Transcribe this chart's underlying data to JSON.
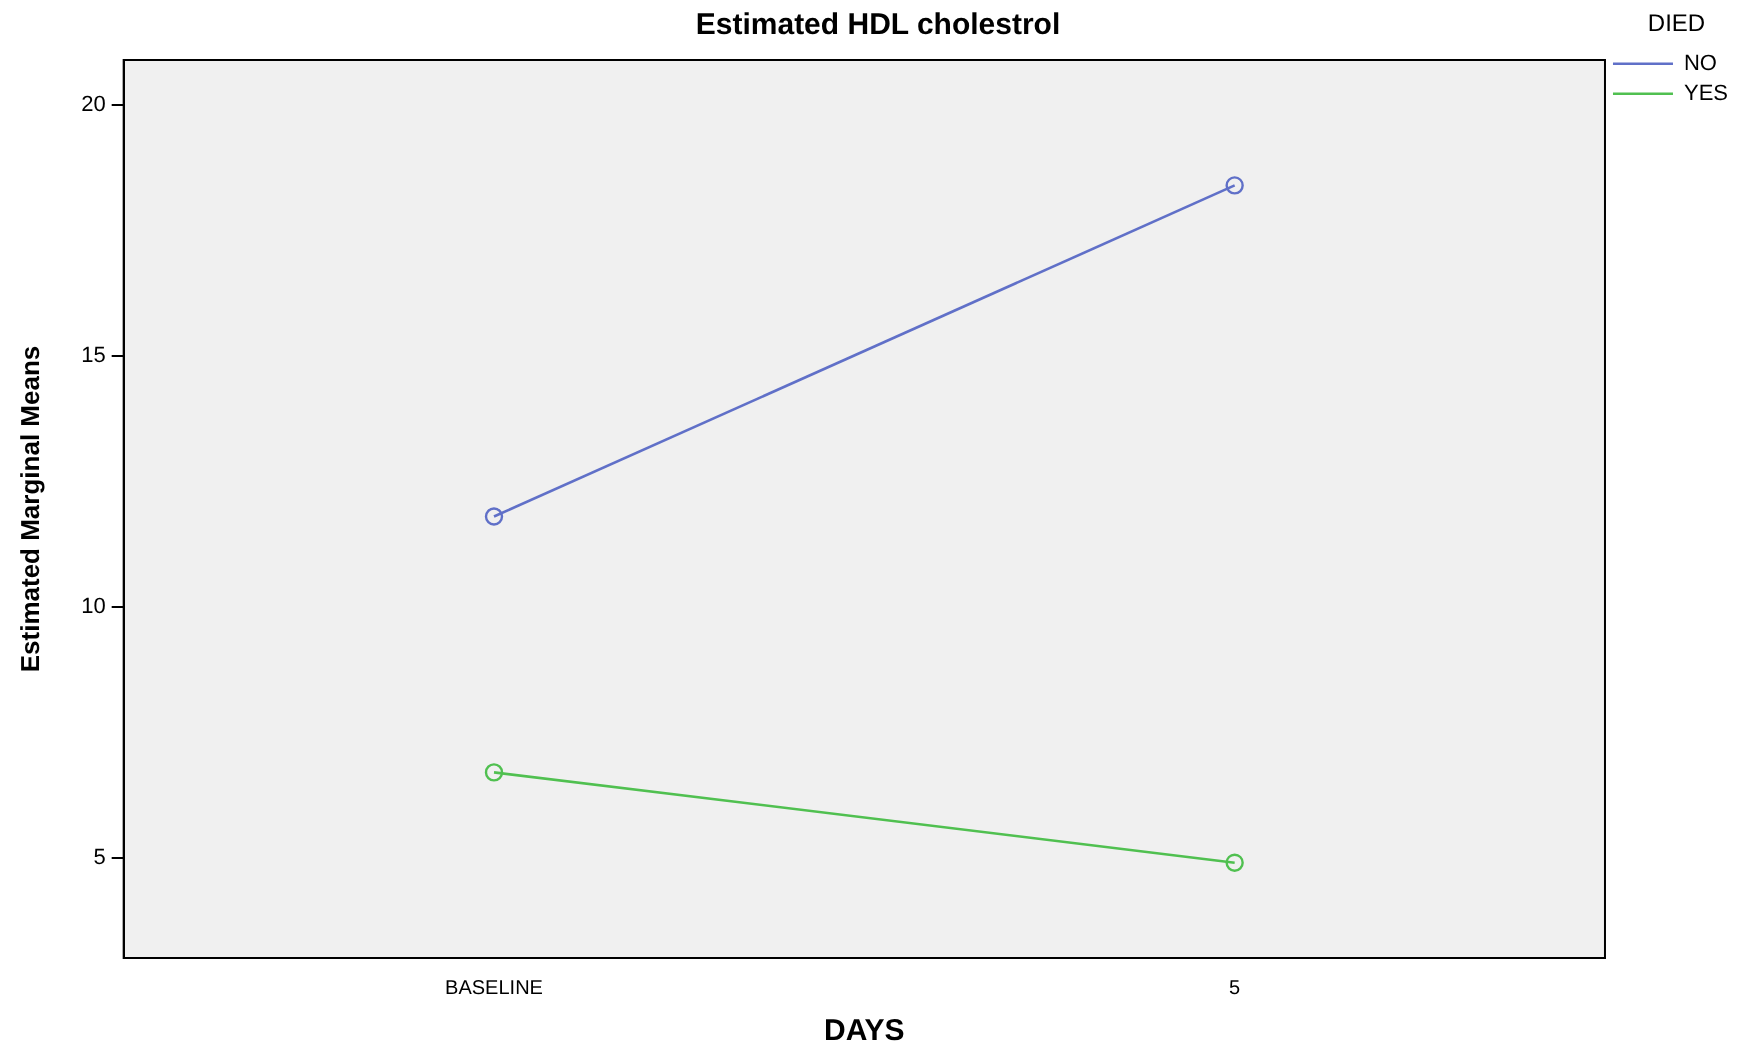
{
  "chart_data": {
    "type": "line",
    "title": "Estimated HDL cholestrol",
    "xlabel": "DAYS",
    "ylabel": "Estimated Marginal Means",
    "legend_title": "DIED",
    "categories": [
      "BASELINE",
      "5"
    ],
    "series": [
      {
        "name": "NO",
        "color": "#6070c8",
        "values": [
          11.8,
          18.4
        ]
      },
      {
        "name": "YES",
        "color": "#50c050",
        "values": [
          6.7,
          4.9
        ]
      }
    ],
    "ylim": [
      3,
      20.9
    ],
    "yticks": [
      5,
      10,
      15,
      20
    ],
    "grid": false,
    "legend": "top right",
    "marker": "circle",
    "line_style": "solid"
  }
}
